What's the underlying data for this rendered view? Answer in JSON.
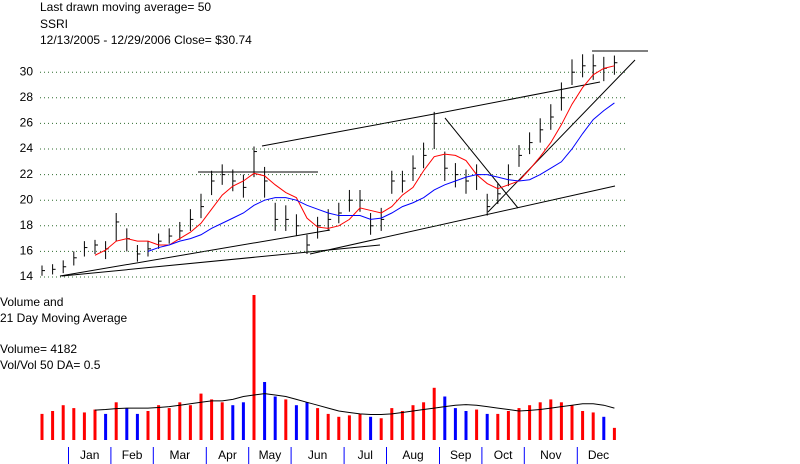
{
  "chart_data": {
    "type": "ohlc",
    "title": "Last drawn moving average= 50",
    "symbol": "SSRI",
    "subtitle": "12/13/2005 - 12/29/2006   Close= $30.74",
    "categories": [
      null,
      null,
      null,
      "Jan",
      null,
      null,
      null,
      "Feb",
      null,
      null,
      null,
      "Mar",
      null,
      null,
      null,
      null,
      "Apr",
      null,
      null,
      null,
      "May",
      null,
      null,
      null,
      "Jun",
      null,
      null,
      null,
      null,
      "Jul",
      null,
      null,
      null,
      "Aug",
      null,
      null,
      null,
      null,
      "Sep",
      null,
      null,
      null,
      "Oct",
      null,
      null,
      null,
      "Nov",
      null,
      null,
      null,
      null,
      "Dec",
      null,
      null,
      null
    ],
    "high": [
      14.9,
      15.0,
      15.3,
      16.0,
      16.8,
      16.9,
      16.8,
      19.0,
      17.8,
      16.5,
      16.8,
      17.4,
      17.8,
      18.3,
      19.3,
      20.5,
      22.3,
      22.8,
      22.4,
      22.0,
      24.2,
      22.6,
      19.8,
      19.6,
      18.9,
      17.3,
      18.7,
      19.3,
      19.8,
      20.8,
      20.8,
      19.0,
      19.4,
      22.3,
      22.3,
      23.5,
      24.5,
      26.9,
      23.8,
      22.9,
      22.4,
      22.8,
      20.5,
      21.3,
      22.8,
      24.3,
      25.3,
      26.4,
      27.5,
      29.2,
      31.0,
      31.4,
      31.4,
      31.2,
      31.3
    ],
    "low": [
      14.1,
      14.2,
      14.3,
      14.9,
      15.6,
      15.8,
      15.4,
      16.8,
      16.0,
      15.2,
      15.6,
      16.2,
      16.6,
      16.9,
      17.6,
      18.6,
      20.4,
      21.2,
      20.7,
      20.2,
      21.8,
      20.2,
      17.6,
      17.6,
      17.2,
      15.8,
      17.0,
      17.6,
      18.2,
      19.1,
      19.1,
      17.3,
      17.6,
      20.5,
      20.6,
      21.5,
      22.5,
      24.0,
      21.5,
      21.0,
      20.5,
      20.8,
      18.8,
      19.7,
      21.1,
      22.6,
      23.6,
      24.5,
      25.5,
      27.0,
      29.0,
      29.6,
      29.4,
      29.3,
      29.8
    ],
    "close": [
      14.5,
      14.6,
      14.8,
      15.5,
      16.3,
      16.5,
      16.2,
      18.3,
      17.0,
      15.8,
      16.2,
      16.8,
      17.2,
      17.6,
      18.5,
      19.5,
      21.5,
      22.0,
      21.5,
      21.0,
      23.8,
      21.5,
      18.5,
      18.5,
      18.0,
      16.5,
      18.0,
      18.5,
      19.0,
      20.0,
      20.0,
      18.0,
      18.5,
      21.5,
      21.5,
      22.5,
      23.5,
      26.0,
      22.5,
      22.0,
      21.5,
      22.0,
      19.5,
      20.5,
      22.0,
      23.5,
      24.5,
      25.5,
      26.5,
      28.0,
      30.0,
      30.5,
      30.5,
      30.3,
      30.74
    ],
    "bar_color": "#000000",
    "ma_lines": [
      {
        "color": "#ff0000",
        "values": [
          null,
          null,
          null,
          null,
          null,
          15.7,
          16.1,
          16.8,
          17.0,
          16.8,
          16.8,
          16.5,
          16.5,
          17.0,
          17.5,
          18.2,
          19.3,
          20.4,
          21.1,
          21.5,
          22.1,
          21.9,
          21.2,
          20.6,
          20.2,
          18.6,
          17.9,
          17.8,
          18.0,
          18.5,
          19.4,
          19.2,
          19.0,
          19.5,
          20.4,
          21.0,
          22.3,
          23.4,
          23.6,
          23.5,
          23.1,
          22.0,
          21.3,
          20.9,
          21.2,
          21.5,
          22.4,
          23.4,
          24.5,
          25.9,
          27.5,
          28.8,
          29.8,
          30.3,
          30.5
        ]
      },
      {
        "color": "#0000ff",
        "values": [
          null,
          null,
          null,
          null,
          null,
          null,
          null,
          null,
          null,
          null,
          16.0,
          16.3,
          16.5,
          16.8,
          17.0,
          17.3,
          17.8,
          18.2,
          18.6,
          19.0,
          19.6,
          20.0,
          20.2,
          20.2,
          20.0,
          19.6,
          19.3,
          19.0,
          18.8,
          18.8,
          18.8,
          18.5,
          18.6,
          19.0,
          19.5,
          19.8,
          20.2,
          20.8,
          21.2,
          21.5,
          21.8,
          22.0,
          22.0,
          21.8,
          21.6,
          21.5,
          21.6,
          22.0,
          22.5,
          23.0,
          24.0,
          25.2,
          26.3,
          27.0,
          27.6
        ]
      }
    ],
    "ylim": [
      14,
      32
    ],
    "yticks": [
      14,
      16,
      18,
      20,
      22,
      24,
      26,
      28,
      30
    ],
    "grid": true,
    "grid_color": "#2e6b2e",
    "volume_title": [
      "Volume and",
      "21 Day Moving Average"
    ],
    "volume_label": "Volume= 4182",
    "ratio_label": "Vol/Vol 50 DA= 0.5",
    "volume": [
      9000,
      10000,
      12000,
      11000,
      9500,
      10500,
      9000,
      13000,
      11000,
      9000,
      10000,
      12000,
      11000,
      13000,
      12000,
      16000,
      14000,
      13000,
      12000,
      13000,
      50000,
      20000,
      15000,
      14000,
      12000,
      13000,
      11000,
      9000,
      8000,
      8500,
      9000,
      8000,
      7500,
      11000,
      10000,
      12000,
      13000,
      18000,
      15000,
      11000,
      10000,
      10500,
      9000,
      9000,
      10000,
      11000,
      12000,
      13000,
      14000,
      13000,
      12000,
      10000,
      9500,
      8000,
      4182
    ],
    "volume_ma": [
      null,
      null,
      null,
      null,
      null,
      10300,
      10500,
      10800,
      11000,
      11000,
      11000,
      11200,
      11500,
      12000,
      12500,
      13000,
      13500,
      13500,
      14000,
      15000,
      15500,
      16000,
      15500,
      15000,
      14000,
      13000,
      12000,
      11000,
      10000,
      9500,
      9000,
      8800,
      8800,
      9000,
      9500,
      10000,
      10500,
      11000,
      11500,
      12000,
      12200,
      12000,
      11500,
      11000,
      10500,
      10000,
      10200,
      10500,
      11000,
      11500,
      12000,
      12500,
      12500,
      12000,
      11000
    ],
    "volume_lim": [
      0,
      50000
    ],
    "up_color": "#ff0000",
    "down_color": "#0000ff",
    "month_tick_color": "#0000ff"
  }
}
